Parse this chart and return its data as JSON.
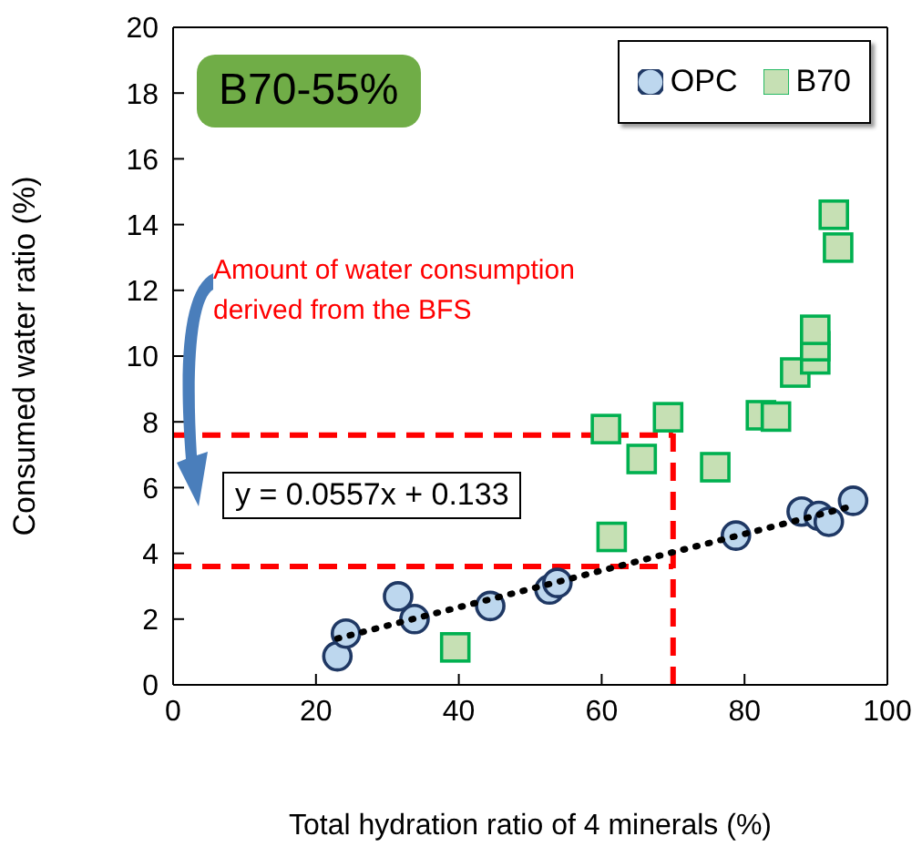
{
  "chart_data": {
    "type": "scatter",
    "xlabel": "Total hydration ratio of 4 minerals (%)",
    "ylabel": "Consumed water ratio (%)",
    "xlim": [
      0,
      100
    ],
    "xticks": [
      0,
      20,
      40,
      60,
      80,
      100
    ],
    "ylim": [
      0,
      20
    ],
    "yticks": [
      0,
      2,
      4,
      6,
      8,
      10,
      12,
      14,
      16,
      18,
      20
    ],
    "grid": false,
    "legend": "top right",
    "series": [
      {
        "name": "OPC",
        "marker": "circle",
        "color": "#bdd7ee",
        "x": [
          23.0,
          24.2,
          31.5,
          33.8,
          44.4,
          52.7,
          53.8,
          78.8,
          88.0,
          90.4,
          91.8,
          95.2
        ],
        "values": [
          0.87,
          1.56,
          2.69,
          2.0,
          2.4,
          2.9,
          3.1,
          4.54,
          5.27,
          5.14,
          4.96,
          5.6
        ]
      },
      {
        "name": "B70",
        "marker": "square",
        "color": "#c6e0b4",
        "x": [
          39.5,
          61.4,
          60.6,
          65.6,
          69.3,
          75.9,
          82.3,
          84.4,
          87.1,
          89.9,
          89.9,
          89.9,
          92.5,
          93.1
        ],
        "values": [
          1.14,
          4.5,
          7.78,
          6.87,
          8.14,
          6.62,
          8.2,
          8.16,
          9.5,
          9.9,
          10.3,
          10.8,
          14.3,
          13.3
        ]
      },
      {
        "type": "line",
        "marker": "none",
        "line_style": "dotted",
        "color": "#000000",
        "x": [
          23,
          95
        ],
        "values": [
          1.41,
          5.43
        ]
      }
    ],
    "ref_lines": [
      {
        "axis": "x",
        "value": 70,
        "color": "#ff0000",
        "line_style": "dashed"
      },
      {
        "axis": "y",
        "value": 7.6,
        "color": "#ff0000",
        "line_style": "dashed"
      },
      {
        "axis": "y",
        "value": 3.6,
        "color": "#ff0000",
        "line_style": "dashed"
      }
    ],
    "annotations": [
      "B70-55%",
      "Amount of water consumption derived from the BFS",
      "y = 0.0557x + 0.133"
    ]
  }
}
